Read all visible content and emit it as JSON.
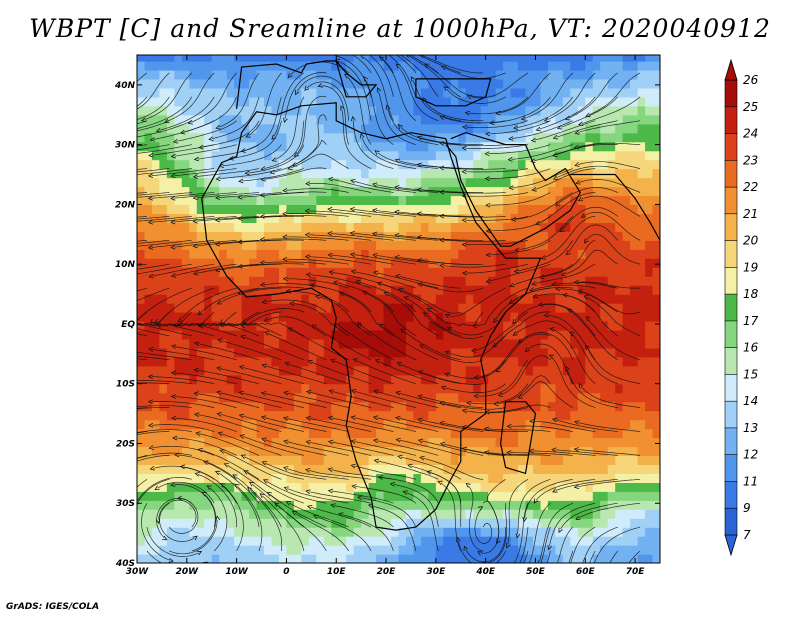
{
  "title": "WBPT [C] and Sreamline at 1000hPa, VT: 2020040912",
  "credit": "GrADS: IGES/COLA",
  "colors": {
    "levels": [
      "#2a63d8",
      "#3a7ae6",
      "#5096ec",
      "#73b2f2",
      "#a0d0f6",
      "#d0ecfa",
      "#b8e8b0",
      "#86d680",
      "#4cb948",
      "#f4f0a6",
      "#f6d67a",
      "#f4b24a",
      "#f09030",
      "#ea6a22",
      "#dc421a",
      "#c42010",
      "#a60c08"
    ],
    "coast": "#000000",
    "streamline": "#111111"
  },
  "chart_data": {
    "type": "heatmap",
    "title": "WBPT [C] and Sreamline at 1000hPa, VT: 2020040912",
    "xlim": [
      -30,
      75
    ],
    "ylim": [
      -40,
      45
    ],
    "x_ticks": [
      {
        "value": -30,
        "label": "30W"
      },
      {
        "value": -20,
        "label": "20W"
      },
      {
        "value": -10,
        "label": "10W"
      },
      {
        "value": 0,
        "label": "0"
      },
      {
        "value": 10,
        "label": "10E"
      },
      {
        "value": 20,
        "label": "20E"
      },
      {
        "value": 30,
        "label": "30E"
      },
      {
        "value": 40,
        "label": "40E"
      },
      {
        "value": 50,
        "label": "50E"
      },
      {
        "value": 60,
        "label": "60E"
      },
      {
        "value": 70,
        "label": "70E"
      }
    ],
    "y_ticks": [
      {
        "value": 40,
        "label": "40N"
      },
      {
        "value": 30,
        "label": "30N"
      },
      {
        "value": 20,
        "label": "20N"
      },
      {
        "value": 10,
        "label": "10N"
      },
      {
        "value": 0,
        "label": "EQ"
      },
      {
        "value": -10,
        "label": "10S"
      },
      {
        "value": -20,
        "label": "20S"
      },
      {
        "value": -30,
        "label": "30S"
      },
      {
        "value": -40,
        "label": "40S"
      }
    ],
    "colorbar": {
      "labels": [
        "26",
        "25",
        "24",
        "23",
        "22",
        "21",
        "20",
        "19",
        "18",
        "17",
        "16",
        "15",
        "14",
        "13",
        "12",
        "11",
        "9",
        "7"
      ],
      "placement": "right"
    },
    "units": "C",
    "level": "1000hPa",
    "valid_time": "2020040912"
  }
}
